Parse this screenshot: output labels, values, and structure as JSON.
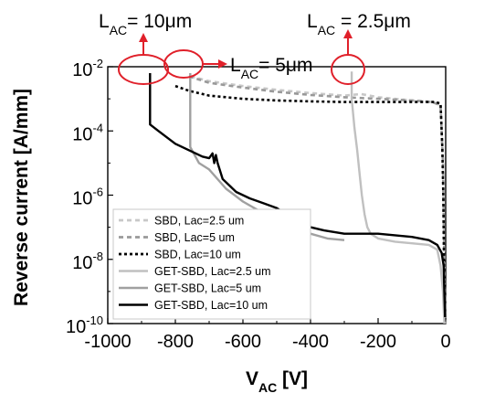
{
  "chart_data": {
    "type": "line",
    "xlabel": {
      "main": "V",
      "sub": "AC",
      "unit": " [V]"
    },
    "ylabel": "Reverse current [A/mm]",
    "xlim": [
      -1000,
      0
    ],
    "ylim_log10": [
      -10,
      -2
    ],
    "y_log_scale": true,
    "grid": false,
    "legend_position": "bottom-left",
    "x_ticks": [
      {
        "value": -1000,
        "label": "-1000"
      },
      {
        "value": -800,
        "label": "-800"
      },
      {
        "value": -600,
        "label": "-600"
      },
      {
        "value": -400,
        "label": "-400"
      },
      {
        "value": -200,
        "label": "-200"
      },
      {
        "value": 0,
        "label": "0"
      }
    ],
    "y_ticks": [
      {
        "exp": -2,
        "base": "10",
        "sup": "-2"
      },
      {
        "exp": -4,
        "base": "10",
        "sup": "-4"
      },
      {
        "exp": -6,
        "base": "10",
        "sup": "-6"
      },
      {
        "exp": -8,
        "base": "10",
        "sup": "-8"
      },
      {
        "exp": -10,
        "base": "10",
        "sup": "-10"
      }
    ],
    "series": [
      {
        "name": "SBD, Lac=2.5 um",
        "color": "#c8c8c8",
        "dash": "dashed",
        "points": [
          [
            -755,
            -2.3
          ],
          [
            -700,
            -2.45
          ],
          [
            -600,
            -2.6
          ],
          [
            -500,
            -2.72
          ],
          [
            -400,
            -2.82
          ],
          [
            -300,
            -2.9
          ],
          [
            -250,
            -2.85
          ],
          [
            -200,
            -2.95
          ],
          [
            -100,
            -3.05
          ],
          [
            -40,
            -3.1
          ],
          [
            -15,
            -3.2
          ],
          [
            -8,
            -5.0
          ],
          [
            -4,
            -8.0
          ],
          [
            -2,
            -10.0
          ]
        ]
      },
      {
        "name": "SBD, Lac=5 um",
        "color": "#999999",
        "dash": "dashed",
        "points": [
          [
            -760,
            -2.3
          ],
          [
            -700,
            -2.5
          ],
          [
            -600,
            -2.65
          ],
          [
            -500,
            -2.78
          ],
          [
            -400,
            -2.88
          ],
          [
            -300,
            -2.95
          ],
          [
            -200,
            -3.0
          ],
          [
            -100,
            -3.05
          ],
          [
            -40,
            -3.1
          ],
          [
            -15,
            -3.2
          ],
          [
            -8,
            -5.0
          ],
          [
            -4,
            -8.0
          ],
          [
            -2,
            -10.0
          ]
        ]
      },
      {
        "name": "SBD, Lac=10 um",
        "color": "#000000",
        "dash": "dotted",
        "points": [
          [
            -800,
            -2.6
          ],
          [
            -760,
            -2.75
          ],
          [
            -700,
            -2.9
          ],
          [
            -600,
            -3.0
          ],
          [
            -500,
            -3.05
          ],
          [
            -400,
            -3.08
          ],
          [
            -300,
            -3.1
          ],
          [
            -200,
            -3.1
          ],
          [
            -100,
            -3.1
          ],
          [
            -30,
            -3.1
          ],
          [
            -15,
            -3.15
          ],
          [
            -10,
            -4.5
          ],
          [
            -7,
            -6.0
          ],
          [
            -5,
            -8.0
          ],
          [
            -3,
            -10.0
          ]
        ]
      },
      {
        "name": "GET-SBD, Lac=2.5 um",
        "color": "#c0c0c0",
        "dash": "solid",
        "points": [
          [
            -278,
            -2.15
          ],
          [
            -278,
            -3.0
          ],
          [
            -270,
            -3.9
          ],
          [
            -262,
            -4.6
          ],
          [
            -255,
            -5.3
          ],
          [
            -248,
            -6.0
          ],
          [
            -240,
            -6.6
          ],
          [
            -232,
            -7.0
          ],
          [
            -222,
            -7.2
          ],
          [
            -200,
            -7.35
          ],
          [
            -150,
            -7.45
          ],
          [
            -100,
            -7.5
          ],
          [
            -50,
            -7.55
          ],
          [
            -25,
            -7.7
          ],
          [
            -15,
            -8.2
          ],
          [
            -8,
            -9.0
          ],
          [
            -4,
            -10.0
          ]
        ]
      },
      {
        "name": "GET-SBD, Lac=5 um",
        "color": "#a0a0a0",
        "dash": "solid",
        "points": [
          [
            -756,
            -2.2
          ],
          [
            -756,
            -4.5
          ],
          [
            -730,
            -5.0
          ],
          [
            -700,
            -5.2
          ],
          [
            -650,
            -5.8
          ],
          [
            -600,
            -6.2
          ],
          [
            -550,
            -6.5
          ],
          [
            -500,
            -6.8
          ],
          [
            -450,
            -7.0
          ],
          [
            -400,
            -7.2
          ],
          [
            -350,
            -7.35
          ],
          [
            -300,
            -7.4
          ]
        ]
      },
      {
        "name": "GET-SBD, Lac=10 um",
        "color": "#000000",
        "dash": "solid",
        "points": [
          [
            -875,
            -2.2
          ],
          [
            -875,
            -3.8
          ],
          [
            -850,
            -4.0
          ],
          [
            -800,
            -4.4
          ],
          [
            -760,
            -4.6
          ],
          [
            -740,
            -4.7
          ],
          [
            -720,
            -4.8
          ],
          [
            -700,
            -4.85
          ],
          [
            -690,
            -4.7
          ],
          [
            -685,
            -5.0
          ],
          [
            -680,
            -4.75
          ],
          [
            -675,
            -5.0
          ],
          [
            -660,
            -5.5
          ],
          [
            -620,
            -5.9
          ],
          [
            -580,
            -6.1
          ],
          [
            -540,
            -6.25
          ],
          [
            -500,
            -6.4
          ],
          [
            -470,
            -6.6
          ],
          [
            -440,
            -6.8
          ],
          [
            -400,
            -7.0
          ],
          [
            -360,
            -7.1
          ],
          [
            -300,
            -7.2
          ],
          [
            -250,
            -7.2
          ],
          [
            -200,
            -7.2
          ],
          [
            -150,
            -7.25
          ],
          [
            -100,
            -7.3
          ],
          [
            -50,
            -7.4
          ],
          [
            -25,
            -7.55
          ],
          [
            -12,
            -7.8
          ],
          [
            -6,
            -8.2
          ],
          [
            -4,
            -9.0
          ],
          [
            -2,
            -9.8
          ]
        ]
      }
    ],
    "annotations": [
      {
        "id": "lac-10",
        "main": "L",
        "sub": "AC",
        "rest": "= 10μm"
      },
      {
        "id": "lac-5",
        "main": "L",
        "sub": "AC",
        "rest": "= 5μm"
      },
      {
        "id": "lac-2p5",
        "main": "L",
        "sub": "AC",
        "rest": " = 2.5μm"
      }
    ],
    "highlight_color": "#e0202a"
  }
}
